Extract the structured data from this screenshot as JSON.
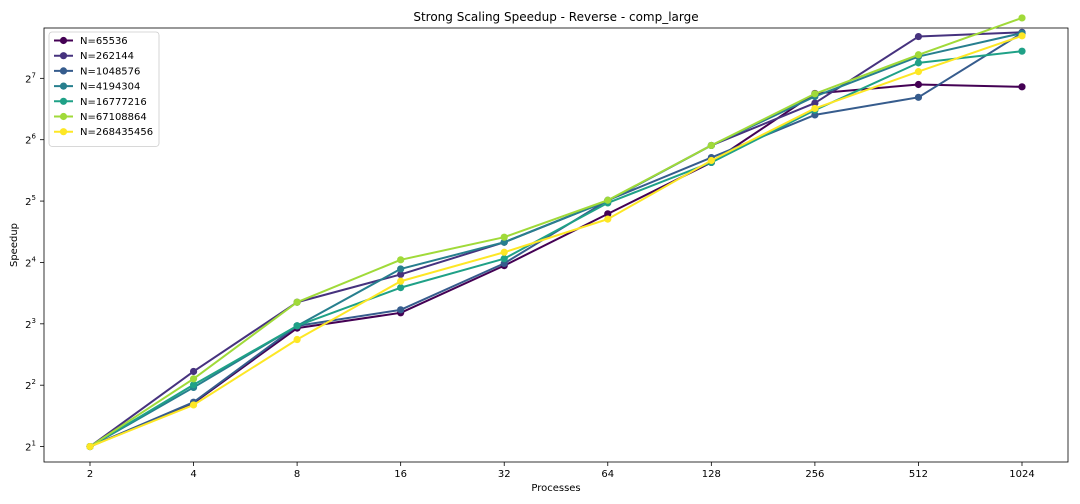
{
  "chart_data": {
    "type": "line",
    "title": "Strong Scaling Speedup - Reverse - comp_large",
    "xlabel": "Processes",
    "ylabel": "Speedup",
    "x": [
      2,
      4,
      8,
      16,
      32,
      64,
      128,
      256,
      512,
      1024
    ],
    "x_tick_labels": [
      "2",
      "4",
      "8",
      "16",
      "32",
      "64",
      "128",
      "256",
      "512",
      "1024"
    ],
    "y_scale": "log2",
    "y_tick_labels": [
      {
        "base": "2",
        "exp": "1",
        "value": 2
      },
      {
        "base": "2",
        "exp": "2",
        "value": 4
      },
      {
        "base": "2",
        "exp": "3",
        "value": 8
      },
      {
        "base": "2",
        "exp": "4",
        "value": 16
      },
      {
        "base": "2",
        "exp": "5",
        "value": 32
      },
      {
        "base": "2",
        "exp": "6",
        "value": 64
      },
      {
        "base": "2",
        "exp": "7",
        "value": 128
      }
    ],
    "ylim": [
      1.68,
      226
    ],
    "grid": false,
    "legend_position": "top-left",
    "series": [
      {
        "name": "N=65536",
        "color": "#440154",
        "values": [
          2.0,
          3.27,
          7.62,
          9.06,
          15.44,
          27.7,
          49.5,
          107.9,
          119.4,
          116.3
        ]
      },
      {
        "name": "N=262144",
        "color": "#46327e",
        "values": [
          2.0,
          4.67,
          10.21,
          13.97,
          20.1,
          32.1,
          60.0,
          96.8,
          205.2,
          215.3
        ]
      },
      {
        "name": "N=1048576",
        "color": "#365c8d",
        "values": [
          2.0,
          3.3,
          7.82,
          9.37,
          15.83,
          32.3,
          52.3,
          84.7,
          103.3,
          213.4
        ]
      },
      {
        "name": "N=4194304",
        "color": "#277f8e",
        "values": [
          2.0,
          3.9,
          7.82,
          14.87,
          20.1,
          32.1,
          60.0,
          104.3,
          163.7,
          213.4
        ]
      },
      {
        "name": "N=16777216",
        "color": "#1fa187",
        "values": [
          2.0,
          4.02,
          7.82,
          12.04,
          16.7,
          31.35,
          49.5,
          89.4,
          152.4,
          173.9
        ]
      },
      {
        "name": "N=67108864",
        "color": "#a0da39",
        "values": [
          2.0,
          4.3,
          10.21,
          16.48,
          21.28,
          32.3,
          60.0,
          107.5,
          167.0,
          253.2
        ]
      },
      {
        "name": "N=268435456",
        "color": "#fde725",
        "values": [
          2.0,
          3.2,
          6.7,
          12.94,
          17.95,
          26.1,
          50.6,
          91.1,
          138.1,
          206.9
        ]
      }
    ]
  }
}
